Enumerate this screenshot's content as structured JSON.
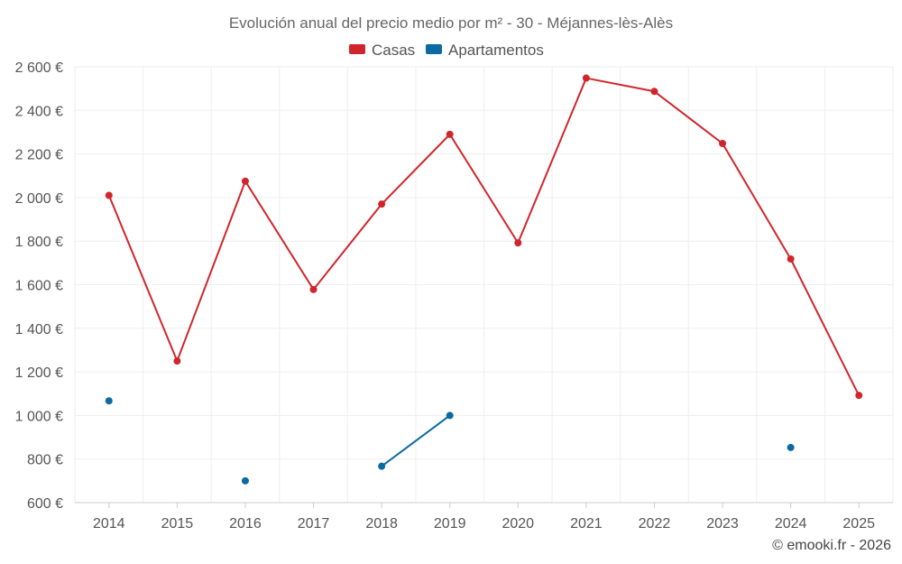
{
  "chart_data": {
    "type": "line",
    "title": "Evolución anual del precio medio por m² - 30 - Méjannes-lès-Alès",
    "x": [
      "2014",
      "2015",
      "2016",
      "2017",
      "2018",
      "2019",
      "2020",
      "2021",
      "2022",
      "2023",
      "2024",
      "2025"
    ],
    "ylim": [
      600,
      2600
    ],
    "yticks": [
      600,
      800,
      1000,
      1200,
      1400,
      1600,
      1800,
      2000,
      2200,
      2400,
      2600
    ],
    "ytick_labels": [
      "600 €",
      "800 €",
      "1 000 €",
      "1 200 €",
      "1 400 €",
      "1 600 €",
      "1 800 €",
      "2 000 €",
      "2 200 €",
      "2 400 €",
      "2 600 €"
    ],
    "grid": true,
    "legend_position": "top-center",
    "series": [
      {
        "name": "Casas",
        "color": "#d0262b",
        "values": [
          2010,
          1250,
          2075,
          1578,
          1970,
          2290,
          1792,
          2548,
          2487,
          2248,
          1718,
          1092
        ]
      },
      {
        "name": "Apartamentos",
        "color": "#0a6aa1",
        "values": [
          1067,
          null,
          700,
          null,
          767,
          1000,
          null,
          null,
          null,
          null,
          853,
          null
        ]
      }
    ]
  },
  "credit": "© emooki.fr - 2026"
}
